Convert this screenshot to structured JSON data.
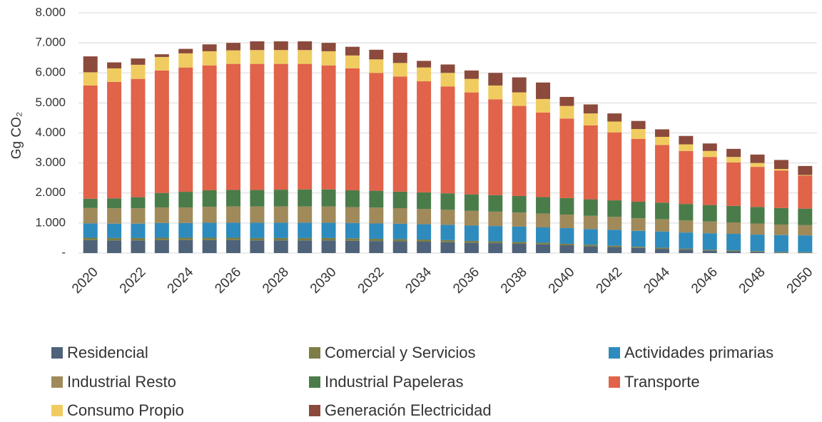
{
  "chart_data": {
    "type": "stacked_bar",
    "y_label": "Gg CO₂",
    "categories": [
      "2020",
      null,
      "2022",
      null,
      "2024",
      null,
      "2026",
      null,
      "2028",
      null,
      "2030",
      null,
      "2032",
      null,
      "2034",
      null,
      "2036",
      null,
      "2038",
      null,
      "2040",
      null,
      "2042",
      null,
      "2044",
      null,
      "2046",
      null,
      "2048",
      null,
      "2050"
    ],
    "ylim": [
      0,
      8000
    ],
    "yticks": [
      {
        "value": 0,
        "label": "-"
      },
      {
        "value": 1000,
        "label": "1.000"
      },
      {
        "value": 2000,
        "label": "2.000"
      },
      {
        "value": 3000,
        "label": "3.000"
      },
      {
        "value": 4000,
        "label": "4.000"
      },
      {
        "value": 5000,
        "label": "5.000"
      },
      {
        "value": 6000,
        "label": "6.000"
      },
      {
        "value": 7000,
        "label": "7.000"
      },
      {
        "value": 8000,
        "label": "8.000"
      }
    ],
    "grid": true,
    "series": [
      {
        "name": "Residencial",
        "color": "#4e6279",
        "values": [
          430,
          420,
          420,
          430,
          430,
          430,
          430,
          420,
          420,
          420,
          420,
          410,
          400,
          390,
          380,
          360,
          340,
          330,
          310,
          290,
          260,
          230,
          200,
          170,
          140,
          110,
          80,
          60,
          40,
          20,
          10
        ]
      },
      {
        "name": "Comercial y Servicios",
        "color": "#7d7d45",
        "values": [
          80,
          80,
          80,
          80,
          80,
          80,
          80,
          80,
          80,
          80,
          80,
          80,
          75,
          75,
          70,
          70,
          65,
          60,
          60,
          55,
          50,
          50,
          45,
          40,
          40,
          35,
          30,
          30,
          25,
          20,
          20
        ]
      },
      {
        "name": "Actividades primarias",
        "color": "#2e8bbd",
        "values": [
          480,
          480,
          480,
          490,
          490,
          500,
          500,
          510,
          510,
          510,
          510,
          510,
          510,
          510,
          510,
          510,
          510,
          510,
          510,
          510,
          520,
          520,
          530,
          530,
          540,
          540,
          550,
          550,
          550,
          560,
          560
        ]
      },
      {
        "name": "Industrial Resto",
        "color": "#a08a5a",
        "values": [
          510,
          510,
          510,
          520,
          520,
          530,
          540,
          540,
          540,
          540,
          540,
          530,
          530,
          520,
          510,
          500,
          490,
          480,
          470,
          460,
          450,
          440,
          430,
          420,
          410,
          400,
          390,
          380,
          370,
          350,
          340
        ]
      },
      {
        "name": "Industrial Papeleras",
        "color": "#4a7c4a",
        "values": [
          310,
          330,
          370,
          480,
          520,
          550,
          550,
          550,
          560,
          570,
          570,
          560,
          560,
          550,
          550,
          550,
          550,
          550,
          550,
          550,
          550,
          550,
          550,
          550,
          550,
          550,
          550,
          550,
          550,
          550,
          550
        ]
      },
      {
        "name": "Transporte",
        "color": "#e0634a",
        "values": [
          3770,
          3880,
          3940,
          4080,
          4140,
          4160,
          4200,
          4200,
          4190,
          4180,
          4130,
          4060,
          3925,
          3835,
          3700,
          3560,
          3395,
          3190,
          3000,
          2815,
          2650,
          2460,
          2265,
          2090,
          1920,
          1765,
          1600,
          1450,
          1335,
          1250,
          1100
        ]
      },
      {
        "name": "Consumo Propio",
        "color": "#f0cc60",
        "values": [
          440,
          450,
          470,
          450,
          470,
          470,
          450,
          460,
          460,
          460,
          470,
          430,
          450,
          450,
          460,
          450,
          450,
          460,
          450,
          450,
          420,
          400,
          360,
          330,
          270,
          220,
          200,
          180,
          130,
          50,
          20
        ]
      },
      {
        "name": "Generación Electricidad",
        "color": "#8b4a3c",
        "values": [
          530,
          200,
          210,
          90,
          150,
          230,
          250,
          290,
          290,
          290,
          280,
          290,
          320,
          340,
          220,
          280,
          280,
          420,
          500,
          550,
          300,
          300,
          270,
          270,
          250,
          280,
          250,
          270,
          280,
          300,
          300
        ]
      }
    ]
  }
}
